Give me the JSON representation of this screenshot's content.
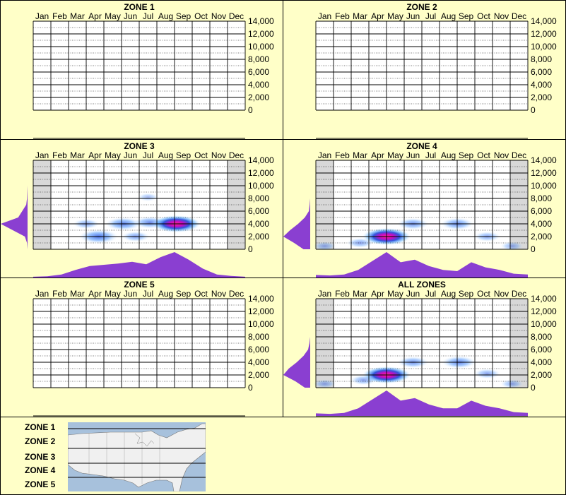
{
  "months": [
    "Jan",
    "Feb",
    "Mar",
    "Apr",
    "May",
    "Jun",
    "Jul",
    "Aug",
    "Sep",
    "Oct",
    "Nov",
    "Dec"
  ],
  "y_ticks": [
    "14,000",
    "12,000",
    "10,000",
    "8,000",
    "6,000",
    "4,000",
    "2,000",
    "0"
  ],
  "colors": {
    "background": "#ffffc8",
    "profile": "#8a3fd1",
    "density_low": "#cfe9ff",
    "density_mid": "#1a44d8",
    "density_high": "#ff2a8a",
    "offseason": "#d8d8d8"
  },
  "chart_data": [
    {
      "type": "heatmap",
      "title": "ZONE 1",
      "x_categories": [
        "Jan",
        "Feb",
        "Mar",
        "Apr",
        "May",
        "Jun",
        "Jul",
        "Aug",
        "Sep",
        "Oct",
        "Nov",
        "Dec"
      ],
      "ylim": [
        0,
        14000
      ],
      "has_data": false,
      "hotspots": [],
      "month_profile": [],
      "elevation_profile": []
    },
    {
      "type": "heatmap",
      "title": "ZONE 2",
      "x_categories": [
        "Jan",
        "Feb",
        "Mar",
        "Apr",
        "May",
        "Jun",
        "Jul",
        "Aug",
        "Sep",
        "Oct",
        "Nov",
        "Dec"
      ],
      "ylim": [
        0,
        14000
      ],
      "has_data": false,
      "hotspots": [],
      "month_profile": [],
      "elevation_profile": []
    },
    {
      "type": "heatmap",
      "title": "ZONE 3",
      "x_categories": [
        "Jan",
        "Feb",
        "Mar",
        "Apr",
        "May",
        "Jun",
        "Jul",
        "Aug",
        "Sep",
        "Oct",
        "Nov",
        "Dec"
      ],
      "ylim": [
        0,
        14000
      ],
      "has_data": true,
      "shaded_months": [
        "Jan",
        "Dec"
      ],
      "hotspots": [
        {
          "month": 4.2,
          "elev": 2000,
          "intensity": 0.7
        },
        {
          "month": 5.6,
          "elev": 4000,
          "intensity": 0.6
        },
        {
          "month": 7.1,
          "elev": 4200,
          "intensity": 0.5
        },
        {
          "month": 8.6,
          "elev": 4000,
          "intensity": 1.0
        },
        {
          "month": 6.3,
          "elev": 2000,
          "intensity": 0.35
        },
        {
          "month": 3.5,
          "elev": 4000,
          "intensity": 0.3
        },
        {
          "month": 7.0,
          "elev": 8200,
          "intensity": 0.12
        }
      ],
      "month_profile": [
        0.03,
        0.05,
        0.12,
        0.3,
        0.45,
        0.5,
        0.55,
        0.62,
        0.52,
        0.8,
        1.0,
        0.7,
        0.35,
        0.12,
        0.06,
        0.03
      ],
      "elevation_profile": [
        0,
        0.02,
        0.1,
        0.55,
        1.0,
        0.35,
        0.2,
        0.05,
        0.02,
        0.01,
        0,
        0,
        0,
        0,
        0
      ]
    },
    {
      "type": "heatmap",
      "title": "ZONE 4",
      "x_categories": [
        "Jan",
        "Feb",
        "Mar",
        "Apr",
        "May",
        "Jun",
        "Jul",
        "Aug",
        "Sep",
        "Oct",
        "Nov",
        "Dec"
      ],
      "ylim": [
        0,
        14000
      ],
      "has_data": true,
      "shaded_months": [
        "Jan",
        "Dec"
      ],
      "hotspots": [
        {
          "month": 4.5,
          "elev": 2000,
          "intensity": 1.0
        },
        {
          "month": 6.0,
          "elev": 4000,
          "intensity": 0.45
        },
        {
          "month": 8.5,
          "elev": 4000,
          "intensity": 0.5
        },
        {
          "month": 3.0,
          "elev": 1000,
          "intensity": 0.3
        },
        {
          "month": 10.2,
          "elev": 2000,
          "intensity": 0.3
        },
        {
          "month": 1.0,
          "elev": 500,
          "intensity": 0.2
        },
        {
          "month": 11.6,
          "elev": 500,
          "intensity": 0.2
        }
      ],
      "month_profile": [
        0.1,
        0.08,
        0.12,
        0.3,
        0.65,
        1.0,
        0.6,
        0.7,
        0.45,
        0.3,
        0.25,
        0.6,
        0.4,
        0.3,
        0.15,
        0.12
      ],
      "elevation_profile": [
        0.25,
        0.6,
        1.0,
        0.75,
        0.45,
        0.2,
        0.05,
        0.02,
        0,
        0,
        0,
        0,
        0,
        0,
        0
      ]
    },
    {
      "type": "heatmap",
      "title": "ZONE 5",
      "x_categories": [
        "Jan",
        "Feb",
        "Mar",
        "Apr",
        "May",
        "Jun",
        "Jul",
        "Aug",
        "Sep",
        "Oct",
        "Nov",
        "Dec"
      ],
      "ylim": [
        0,
        14000
      ],
      "has_data": false,
      "hotspots": [],
      "month_profile": [],
      "elevation_profile": []
    },
    {
      "type": "heatmap",
      "title": "ALL ZONES",
      "x_categories": [
        "Jan",
        "Feb",
        "Mar",
        "Apr",
        "May",
        "Jun",
        "Jul",
        "Aug",
        "Sep",
        "Oct",
        "Nov",
        "Dec"
      ],
      "ylim": [
        0,
        14000
      ],
      "has_data": true,
      "shaded_months": [
        "Jan",
        "Dec"
      ],
      "hotspots": [
        {
          "month": 4.5,
          "elev": 2000,
          "intensity": 1.0
        },
        {
          "month": 6.0,
          "elev": 4000,
          "intensity": 0.45
        },
        {
          "month": 8.6,
          "elev": 4000,
          "intensity": 0.55
        },
        {
          "month": 3.2,
          "elev": 1200,
          "intensity": 0.3
        },
        {
          "month": 10.2,
          "elev": 2200,
          "intensity": 0.3
        },
        {
          "month": 1.0,
          "elev": 600,
          "intensity": 0.2
        },
        {
          "month": 11.6,
          "elev": 600,
          "intensity": 0.2
        }
      ],
      "month_profile": [
        0.1,
        0.08,
        0.12,
        0.3,
        0.65,
        1.0,
        0.6,
        0.7,
        0.45,
        0.3,
        0.3,
        0.6,
        0.4,
        0.3,
        0.15,
        0.12
      ],
      "elevation_profile": [
        0.2,
        0.55,
        1.0,
        0.8,
        0.5,
        0.25,
        0.08,
        0.03,
        0,
        0,
        0,
        0,
        0,
        0,
        0
      ]
    }
  ],
  "legend": {
    "zones": [
      "ZONE 1",
      "ZONE 2",
      "ZONE 3",
      "ZONE 4",
      "ZONE 5"
    ]
  }
}
